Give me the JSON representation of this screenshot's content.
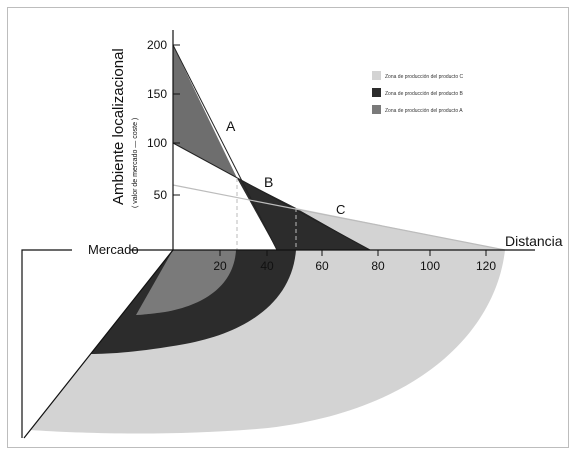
{
  "colors": {
    "zone_c": "#d3d3d3",
    "zone_b": "#2c2c2c",
    "zone_a": "#7a7a7a",
    "line_c": "#bcbcbc"
  },
  "axes": {
    "y_label": "Ambiente localizacional",
    "y_sublabel": "( valor de mercado — coste )",
    "x_label": "Distancia",
    "origin_label": "Mercado",
    "y_ticks": [
      "200",
      "150",
      "100",
      "50"
    ],
    "x_ticks": [
      "20",
      "40",
      "60",
      "80",
      "100",
      "120"
    ]
  },
  "curves": [
    {
      "label": "A",
      "y_intercept": 200,
      "x_intercept": 40
    },
    {
      "label": "B",
      "y_intercept": 100,
      "x_intercept": 75
    },
    {
      "label": "C",
      "y_intercept": 55,
      "x_intercept": 128
    }
  ],
  "legend": [
    {
      "label": "Zona de producción del producto C",
      "color_key": "zone_c"
    },
    {
      "label": "Zona de producción del producto B",
      "color_key": "zone_b"
    },
    {
      "label": "Zona de producción del producto A",
      "color_key": "zone_a"
    }
  ]
}
